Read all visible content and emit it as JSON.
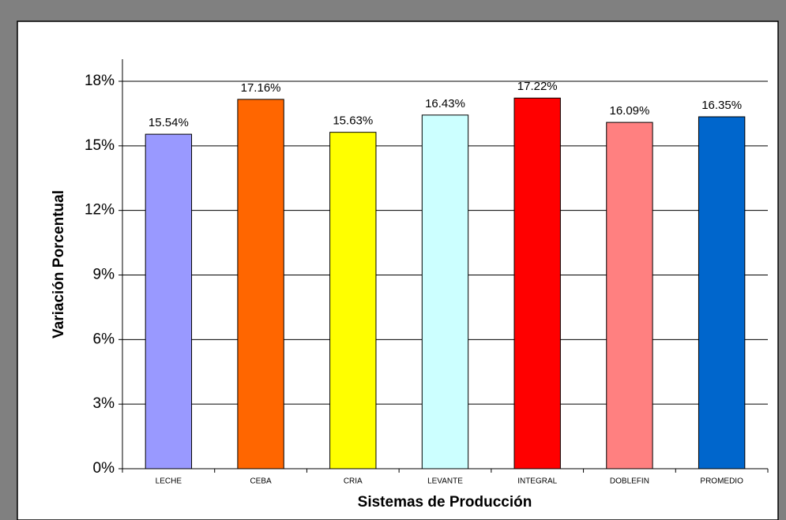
{
  "chart_data": {
    "type": "bar",
    "categories": [
      "LECHE",
      "CEBA",
      "CRIA",
      "LEVANTE",
      "INTEGRAL",
      "DOBLEFIN",
      "PROMEDIO"
    ],
    "values": [
      15.54,
      17.16,
      15.63,
      16.43,
      17.22,
      16.09,
      16.35
    ],
    "value_labels": [
      "15.54%",
      "17.16%",
      "15.63%",
      "16.43%",
      "17.22%",
      "16.09%",
      "16.35%"
    ],
    "colors": [
      "#9999ff",
      "#ff6600",
      "#ffff00",
      "#ccffff",
      "#ff0000",
      "#ff8080",
      "#0066cc"
    ],
    "xlabel": "Sistemas de Producción",
    "ylabel": "Variación Porcentual",
    "ylim": [
      0,
      18
    ],
    "yticks": [
      {
        "value": 0,
        "label": "0%"
      },
      {
        "value": 3,
        "label": "3%"
      },
      {
        "value": 6,
        "label": "6%"
      },
      {
        "value": 9,
        "label": "9%"
      },
      {
        "value": 12,
        "label": "12%"
      },
      {
        "value": 15,
        "label": "15%"
      },
      {
        "value": 18,
        "label": "18%"
      }
    ],
    "grid": true
  }
}
